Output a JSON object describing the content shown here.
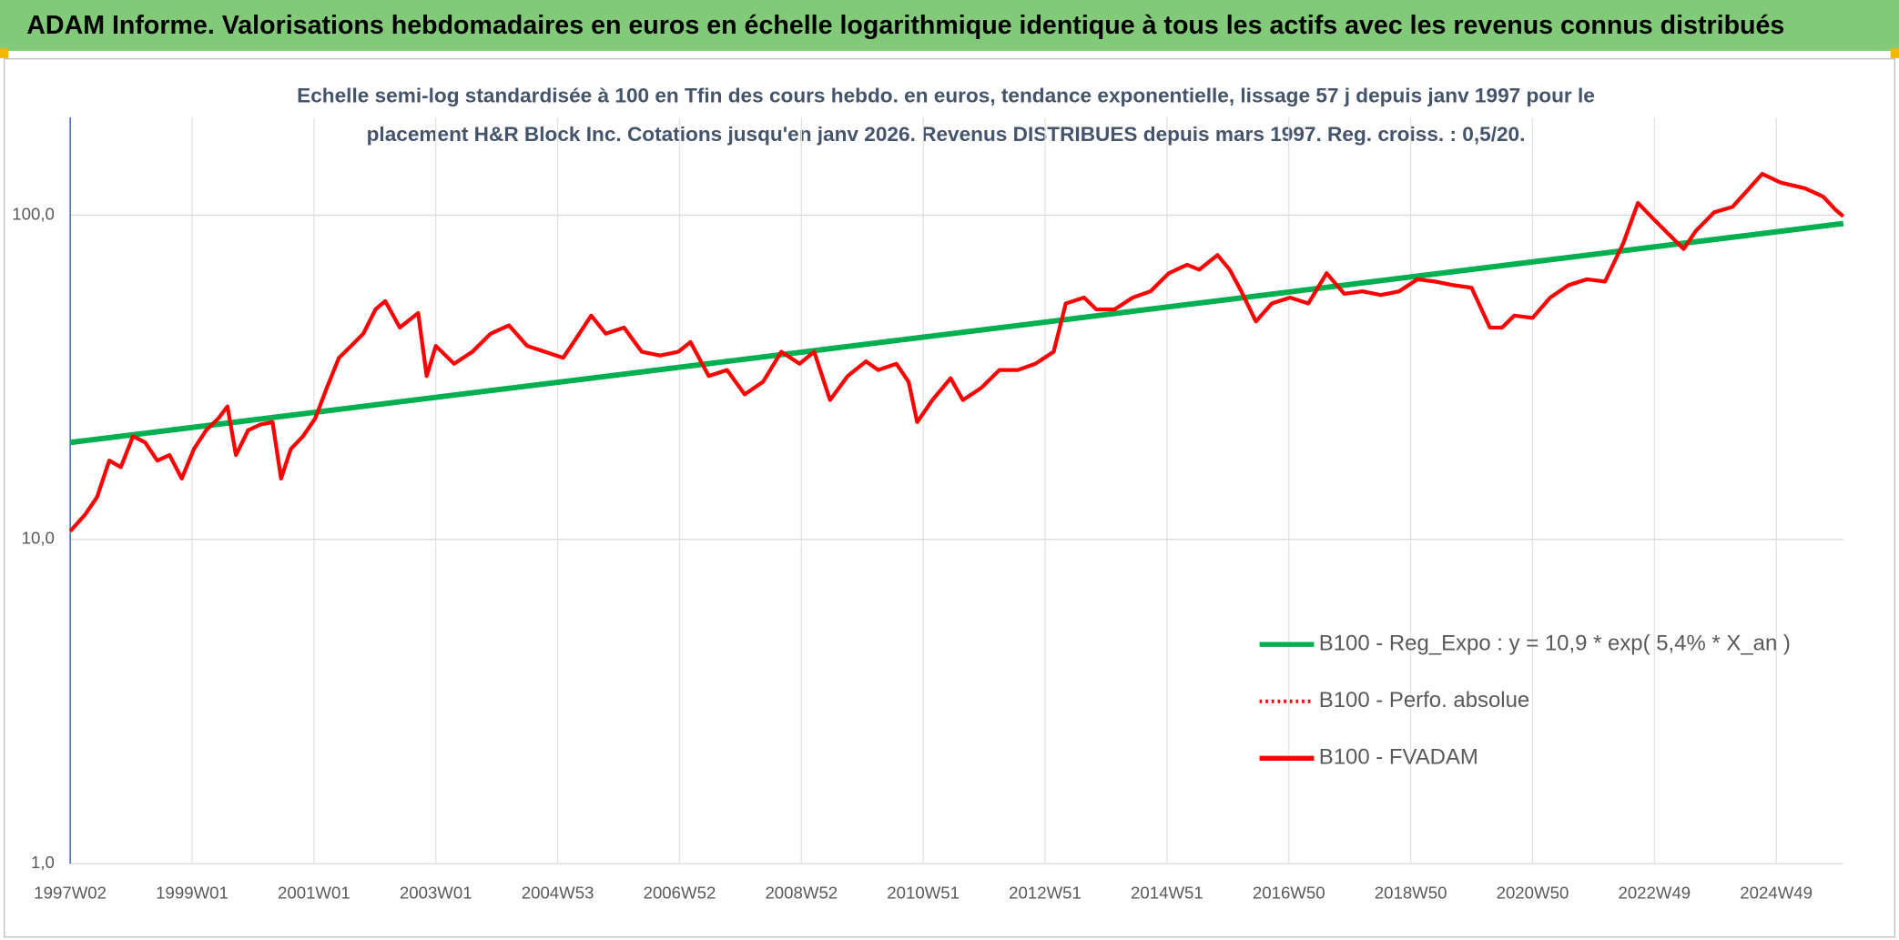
{
  "header": "ADAM Informe. Valorisations hebdomadaires en euros en échelle logarithmique identique à tous les actifs avec les revenus connus distribués",
  "chart_data": {
    "type": "line",
    "title": [
      "Echelle semi-log standardisée à 100 en Tfin des cours hebdo. en euros, tendance exponentielle, lissage 57 j depuis janv 1997 pour le",
      "placement H&R Block Inc. Cotations jusqu'en janv 2026. Revenus DISTRIBUES depuis mars 1997. Reg. croiss. : 0,5/20."
    ],
    "yscale": "log",
    "grid": true,
    "legend": "lower right",
    "xlim": [
      1997.02,
      2026.12
    ],
    "xticks": [
      {
        "value": 1997.02,
        "label": "1997W02"
      },
      {
        "value": 1999.02,
        "label": "1999W01"
      },
      {
        "value": 2001.02,
        "label": "2001W01"
      },
      {
        "value": 2003.02,
        "label": "2003W01"
      },
      {
        "value": 2005.02,
        "label": "2004W53"
      },
      {
        "value": 2007.02,
        "label": "2006W52"
      },
      {
        "value": 2009.02,
        "label": "2008W52"
      },
      {
        "value": 2011.02,
        "label": "2010W51"
      },
      {
        "value": 2013.02,
        "label": "2012W51"
      },
      {
        "value": 2015.02,
        "label": "2014W51"
      },
      {
        "value": 2017.02,
        "label": "2016W50"
      },
      {
        "value": 2019.02,
        "label": "2018W50"
      },
      {
        "value": 2021.02,
        "label": "2020W50"
      },
      {
        "value": 2023.02,
        "label": "2022W49"
      },
      {
        "value": 2025.02,
        "label": "2024W49"
      }
    ],
    "ylim": [
      1,
      200
    ],
    "yticks": [
      {
        "value": 1,
        "label": "1,0"
      },
      {
        "value": 10,
        "label": "10,0"
      },
      {
        "value": 100,
        "label": "100,0"
      }
    ],
    "series": [
      {
        "name": "B100 - Reg_Expo : y = 10,9 * exp( 5,4% *  X_an )",
        "color": "#00b050",
        "dash": "solid",
        "x": [
          1997.02,
          2026.12
        ],
        "values": [
          19.9,
          94.2
        ]
      },
      {
        "name": "B100 - Perfo. absolue",
        "color": "#ff0000",
        "dash": "dotted",
        "x": [],
        "values": []
      },
      {
        "name": "B100 - FVADAM",
        "color": "#ff0000",
        "dash": "solid",
        "x": [
          1997.02,
          1997.26,
          1997.46,
          1997.66,
          1997.85,
          1998.05,
          1998.25,
          1998.45,
          1998.65,
          1998.85,
          1999.05,
          1999.25,
          1999.45,
          1999.6,
          1999.74,
          1999.94,
          2000.14,
          2000.34,
          2000.48,
          2000.64,
          2000.84,
          2001.04,
          2001.23,
          2001.43,
          2001.63,
          2001.83,
          2002.03,
          2002.19,
          2002.43,
          2002.73,
          2002.87,
          2003.02,
          2003.32,
          2003.62,
          2003.92,
          2004.22,
          2004.52,
          2004.81,
          2005.11,
          2005.31,
          2005.57,
          2005.81,
          2006.11,
          2006.4,
          2006.7,
          2007.0,
          2007.2,
          2007.5,
          2007.8,
          2008.09,
          2008.39,
          2008.69,
          2008.99,
          2009.23,
          2009.49,
          2009.78,
          2010.08,
          2010.28,
          2010.58,
          2010.78,
          2010.92,
          2011.17,
          2011.47,
          2011.67,
          2011.97,
          2012.27,
          2012.57,
          2012.86,
          2013.16,
          2013.36,
          2013.66,
          2013.86,
          2014.16,
          2014.46,
          2014.75,
          2015.05,
          2015.35,
          2015.55,
          2015.85,
          2016.05,
          2016.24,
          2016.48,
          2016.74,
          2017.04,
          2017.34,
          2017.64,
          2017.93,
          2018.23,
          2018.53,
          2018.83,
          2019.13,
          2019.42,
          2019.72,
          2020.02,
          2020.32,
          2020.52,
          2020.72,
          2021.02,
          2021.31,
          2021.61,
          2021.91,
          2022.21,
          2022.51,
          2022.75,
          2023.0,
          2023.2,
          2023.5,
          2023.7,
          2024.0,
          2024.3,
          2024.49,
          2024.79,
          2025.09,
          2025.49,
          2025.79,
          2025.99,
          2026.12
        ],
        "values": [
          10.6,
          11.9,
          13.5,
          17.5,
          16.7,
          20.8,
          19.9,
          17.5,
          18.2,
          15.4,
          19.0,
          21.7,
          23.6,
          25.7,
          18.2,
          21.7,
          22.6,
          23.0,
          15.4,
          19.0,
          20.8,
          23.6,
          29.3,
          36.3,
          39.5,
          43.1,
          51.2,
          54.3,
          45.0,
          49.9,
          31.9,
          39.5,
          34.8,
          37.9,
          43.1,
          45.7,
          39.5,
          37.9,
          36.3,
          41.3,
          49.0,
          43.1,
          45.0,
          37.9,
          36.9,
          37.9,
          40.6,
          31.9,
          33.3,
          28.0,
          30.6,
          37.9,
          34.8,
          37.9,
          26.9,
          31.9,
          35.4,
          33.3,
          34.8,
          30.6,
          23.0,
          26.9,
          31.4,
          26.9,
          29.3,
          33.3,
          33.3,
          34.8,
          37.9,
          53.4,
          55.7,
          51.2,
          51.2,
          55.7,
          58.2,
          66.2,
          70.3,
          67.9,
          75.3,
          67.9,
          58.2,
          47.0,
          53.4,
          55.7,
          53.4,
          66.2,
          57.2,
          58.2,
          56.7,
          58.2,
          63.4,
          62.4,
          60.8,
          59.7,
          45.0,
          45.0,
          49.0,
          48.2,
          55.7,
          60.8,
          63.4,
          62.4,
          82.0,
          109,
          97.5,
          89.4,
          78.6,
          89.4,
          102,
          106,
          116,
          134,
          126,
          121,
          114,
          104,
          99.1
        ]
      }
    ]
  }
}
